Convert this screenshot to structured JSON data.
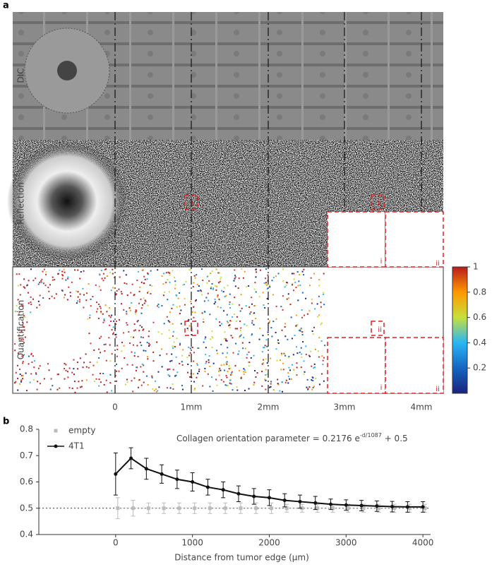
{
  "panel_a": {
    "label": "a",
    "row_labels": [
      "DIC",
      "Reflection",
      "Quantification"
    ],
    "scale_labels": [
      "0",
      "1mm",
      "2mm",
      "3mm",
      "4mm"
    ],
    "inset_labels": [
      "i",
      "ii"
    ],
    "colorbar": {
      "lim": [
        0,
        1
      ],
      "ticks": [
        0.2,
        0.4,
        0.6,
        0.8,
        1
      ]
    }
  },
  "panel_b": {
    "label": "b"
  },
  "chart_data": {
    "type": "line",
    "xlabel": "Distance from tumor edge (µm)",
    "annotation": {
      "text": "Collagen orientation parameter = 0.2176 e",
      "superscript": "-d/1087",
      "suffix": " + 0.5"
    },
    "xlim": [
      -1000,
      4100
    ],
    "ylim": [
      0.4,
      0.8
    ],
    "xticks": [
      0,
      1000,
      2000,
      3000,
      4000
    ],
    "yticks": [
      0.4,
      0.5,
      0.6,
      0.7,
      0.8
    ],
    "reference_line": 0.5,
    "x": [
      0,
      200,
      400,
      600,
      800,
      1000,
      1200,
      1400,
      1600,
      1800,
      2000,
      2200,
      2400,
      2600,
      2800,
      3000,
      3200,
      3400,
      3600,
      3800,
      4000
    ],
    "series": [
      {
        "name": "empty",
        "color": "#bbbbbb",
        "marker": "square",
        "values": [
          0.5,
          0.5,
          0.5,
          0.5,
          0.5,
          0.5,
          0.5,
          0.5,
          0.5,
          0.5,
          0.5,
          0.5,
          0.5,
          0.5,
          0.5,
          0.5,
          0.5,
          0.5,
          0.5,
          0.5,
          0.5
        ],
        "errors": [
          0.04,
          0.03,
          0.02,
          0.02,
          0.02,
          0.02,
          0.02,
          0.02,
          0.02,
          0.02,
          0.02,
          0.015,
          0.015,
          0.015,
          0.015,
          0.015,
          0.015,
          0.015,
          0.015,
          0.015,
          0.015
        ]
      },
      {
        "name": "4T1",
        "color": "#111111",
        "marker": "circle",
        "values": [
          0.63,
          0.69,
          0.65,
          0.63,
          0.61,
          0.6,
          0.58,
          0.57,
          0.555,
          0.545,
          0.54,
          0.53,
          0.525,
          0.52,
          0.515,
          0.512,
          0.51,
          0.508,
          0.506,
          0.505,
          0.505
        ],
        "errors": [
          0.08,
          0.04,
          0.04,
          0.035,
          0.035,
          0.035,
          0.03,
          0.03,
          0.03,
          0.03,
          0.03,
          0.025,
          0.025,
          0.025,
          0.02,
          0.02,
          0.02,
          0.02,
          0.02,
          0.02,
          0.02
        ]
      }
    ]
  }
}
